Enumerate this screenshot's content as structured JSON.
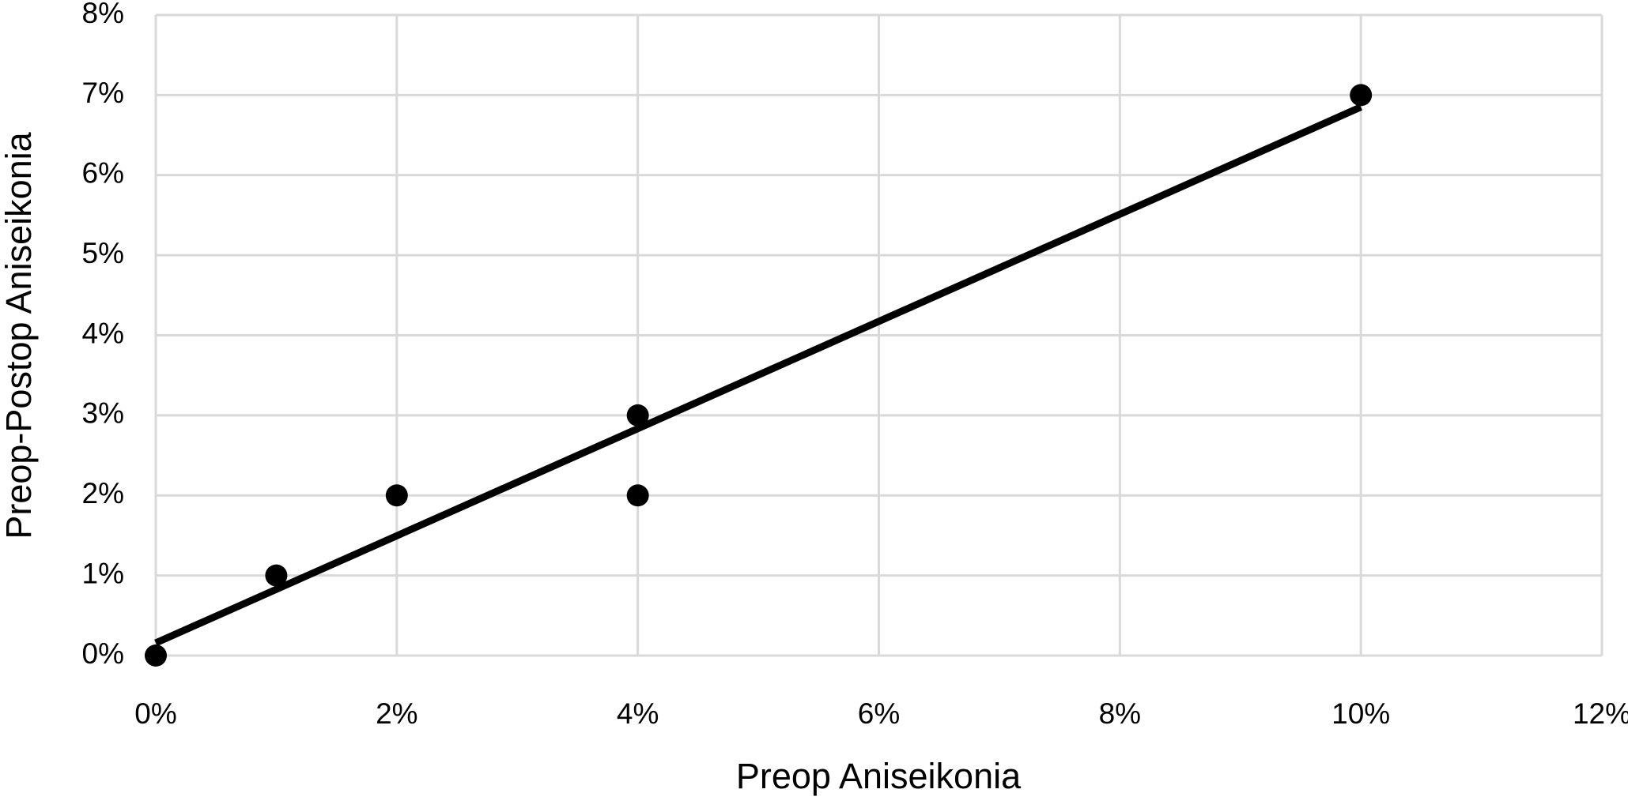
{
  "chart_data": {
    "type": "scatter",
    "x_label": "Preop Aniseikonia",
    "y_label": "Preop-Postop Aniseikonia",
    "x": [
      0,
      1,
      2,
      4,
      4,
      10
    ],
    "values": [
      0,
      1,
      2,
      3,
      2,
      7
    ],
    "color": "#000000",
    "trendline": "linear",
    "grid": true,
    "xlim": [
      0,
      12
    ],
    "xticks": [
      {
        "value": 0,
        "label": "0%"
      },
      {
        "value": 2,
        "label": "2%"
      },
      {
        "value": 4,
        "label": "4%"
      },
      {
        "value": 6,
        "label": "6%"
      },
      {
        "value": 8,
        "label": "8%"
      },
      {
        "value": 10,
        "label": "10%"
      },
      {
        "value": 12,
        "label": "12%"
      }
    ],
    "ylim": [
      0,
      8
    ],
    "yticks": [
      {
        "value": 0,
        "label": "0%"
      },
      {
        "value": 1,
        "label": "1%"
      },
      {
        "value": 2,
        "label": "2%"
      },
      {
        "value": 3,
        "label": "3%"
      },
      {
        "value": 4,
        "label": "4%"
      },
      {
        "value": 5,
        "label": "5%"
      },
      {
        "value": 6,
        "label": "6%"
      },
      {
        "value": 7,
        "label": "7%"
      },
      {
        "value": 8,
        "label": "8%"
      }
    ]
  }
}
